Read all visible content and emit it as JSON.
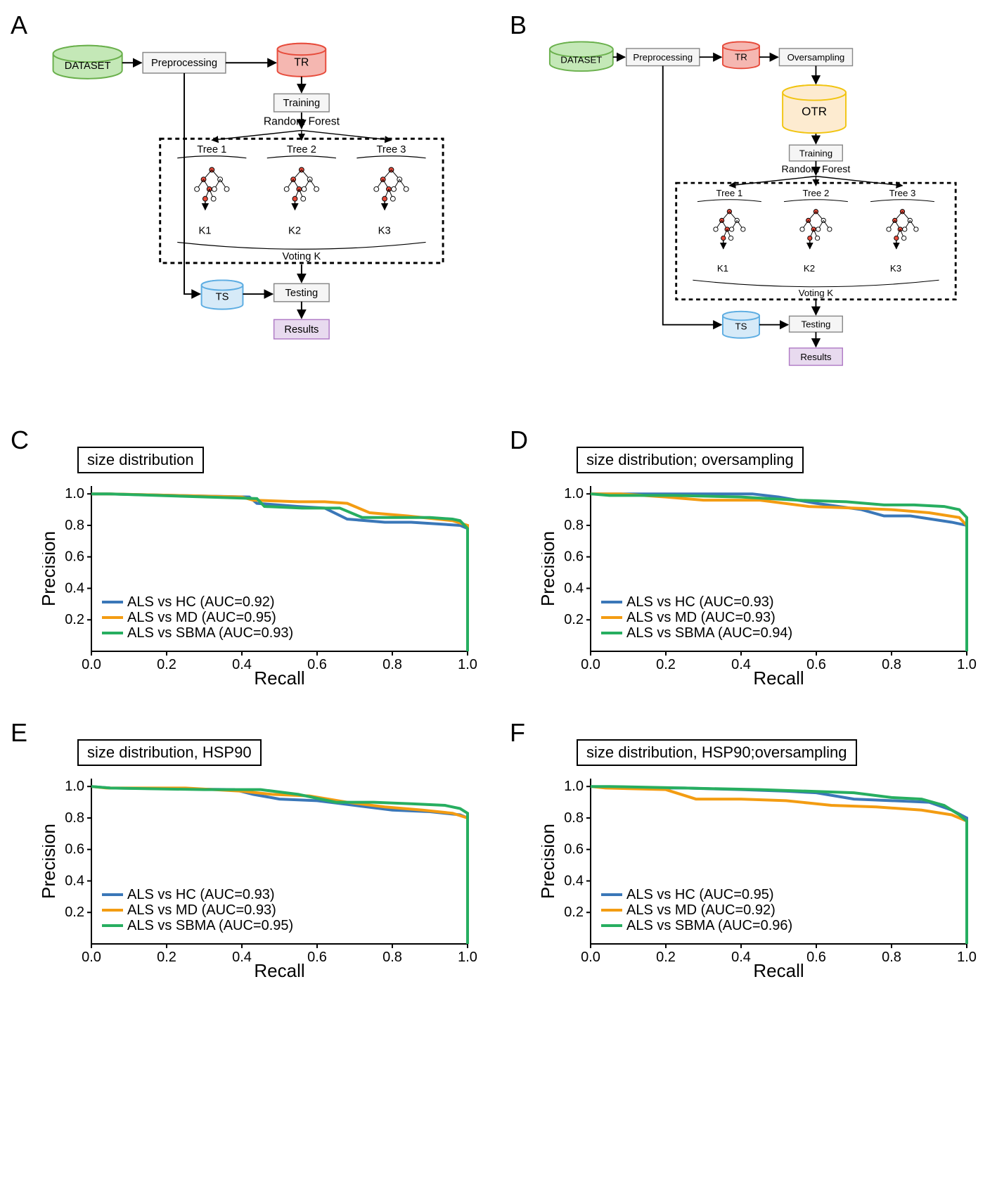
{
  "panels": {
    "A": {
      "label": "A",
      "boxes": {
        "dataset": "DATASET",
        "preprocessing": "Preprocessing",
        "tr": "TR",
        "training": "Training",
        "rf_title": "Random Forest",
        "tree1": "Tree 1",
        "tree2": "Tree 2",
        "tree3": "Tree 3",
        "k1": "K1",
        "k2": "K2",
        "k3": "K3",
        "voting": "Voting K",
        "ts": "TS",
        "testing": "Testing",
        "results": "Results"
      },
      "colors": {
        "dataset_fill": "#c4e8b7",
        "dataset_stroke": "#6ab04c",
        "tr_fill": "#f5b7b1",
        "tr_stroke": "#e74c3c",
        "ts_fill": "#d6eaf8",
        "ts_stroke": "#5dade2",
        "results_fill": "#e8daef",
        "results_stroke": "#af7ac5",
        "box_fill": "#f5f5f5",
        "box_stroke": "#888888",
        "node_fill_red": "#e74c3c",
        "node_fill_white": "#ffffff"
      }
    },
    "B": {
      "label": "B",
      "boxes": {
        "dataset": "DATASET",
        "preprocessing": "Preprocessing",
        "tr": "TR",
        "oversampling": "Oversampling",
        "otr": "OTR",
        "training": "Training",
        "rf_title": "Random Forest",
        "tree1": "Tree 1",
        "tree2": "Tree 2",
        "tree3": "Tree 3",
        "k1": "K1",
        "k2": "K2",
        "k3": "K3",
        "voting": "Voting K",
        "ts": "TS",
        "testing": "Testing",
        "results": "Results"
      },
      "colors": {
        "otr_fill": "#fdebd0",
        "otr_stroke": "#f1c40f"
      }
    },
    "C": {
      "label": "C",
      "title": "size distribution",
      "xlabel": "Recall",
      "ylabel": "Precision",
      "xlim": [
        0,
        1
      ],
      "ylim": [
        0,
        1.05
      ],
      "xticks": [
        0.0,
        0.2,
        0.4,
        0.6,
        0.8,
        1.0
      ],
      "yticks": [
        0.2,
        0.4,
        0.6,
        0.8,
        1.0
      ],
      "series": [
        {
          "name": "ALS vs HC (AUC=0.92)",
          "color": "#3a77b8",
          "data": [
            [
              0,
              1
            ],
            [
              0.04,
              1
            ],
            [
              0.42,
              0.98
            ],
            [
              0.44,
              0.94
            ],
            [
              0.55,
              0.92
            ],
            [
              0.62,
              0.91
            ],
            [
              0.68,
              0.84
            ],
            [
              0.78,
              0.82
            ],
            [
              0.85,
              0.82
            ],
            [
              0.98,
              0.8
            ],
            [
              1.0,
              0.78
            ],
            [
              1.0,
              0
            ]
          ]
        },
        {
          "name": "ALS vs MD (AUC=0.95)",
          "color": "#f39c12",
          "data": [
            [
              0,
              1
            ],
            [
              0.05,
              1
            ],
            [
              0.4,
              0.98
            ],
            [
              0.43,
              0.96
            ],
            [
              0.55,
              0.95
            ],
            [
              0.62,
              0.95
            ],
            [
              0.68,
              0.94
            ],
            [
              0.74,
              0.88
            ],
            [
              0.84,
              0.86
            ],
            [
              0.96,
              0.83
            ],
            [
              1.0,
              0.8
            ],
            [
              1.0,
              0
            ]
          ]
        },
        {
          "name": "ALS vs SBMA (AUC=0.93)",
          "color": "#27ae60",
          "data": [
            [
              0,
              1
            ],
            [
              0.05,
              1
            ],
            [
              0.44,
              0.97
            ],
            [
              0.46,
              0.92
            ],
            [
              0.56,
              0.91
            ],
            [
              0.66,
              0.91
            ],
            [
              0.72,
              0.85
            ],
            [
              0.82,
              0.85
            ],
            [
              0.9,
              0.85
            ],
            [
              0.96,
              0.84
            ],
            [
              0.98,
              0.83
            ],
            [
              1.0,
              0.78
            ],
            [
              1.0,
              0
            ]
          ]
        }
      ]
    },
    "D": {
      "label": "D",
      "title": "size distribution; oversampling",
      "xlabel": "Recall",
      "ylabel": "Precision",
      "xlim": [
        0,
        1
      ],
      "ylim": [
        0,
        1.05
      ],
      "xticks": [
        0.0,
        0.2,
        0.4,
        0.6,
        0.8,
        1.0
      ],
      "yticks": [
        0.2,
        0.4,
        0.6,
        0.8,
        1.0
      ],
      "series": [
        {
          "name": "ALS vs HC (AUC=0.93)",
          "color": "#3a77b8",
          "data": [
            [
              0,
              1
            ],
            [
              0.1,
              1
            ],
            [
              0.3,
              1
            ],
            [
              0.43,
              1
            ],
            [
              0.5,
              0.98
            ],
            [
              0.6,
              0.94
            ],
            [
              0.72,
              0.9
            ],
            [
              0.78,
              0.86
            ],
            [
              0.85,
              0.86
            ],
            [
              0.96,
              0.82
            ],
            [
              1.0,
              0.8
            ],
            [
              1.0,
              0
            ]
          ]
        },
        {
          "name": "ALS vs MD (AUC=0.93)",
          "color": "#f39c12",
          "data": [
            [
              0,
              1
            ],
            [
              0.08,
              1
            ],
            [
              0.2,
              0.98
            ],
            [
              0.3,
              0.96
            ],
            [
              0.45,
              0.96
            ],
            [
              0.58,
              0.92
            ],
            [
              0.7,
              0.91
            ],
            [
              0.8,
              0.9
            ],
            [
              0.9,
              0.88
            ],
            [
              0.98,
              0.85
            ],
            [
              1.0,
              0.8
            ],
            [
              1.0,
              0
            ]
          ]
        },
        {
          "name": "ALS vs SBMA (AUC=0.94)",
          "color": "#27ae60",
          "data": [
            [
              0,
              1
            ],
            [
              0.05,
              0.99
            ],
            [
              0.22,
              0.99
            ],
            [
              0.4,
              0.98
            ],
            [
              0.55,
              0.96
            ],
            [
              0.68,
              0.95
            ],
            [
              0.78,
              0.93
            ],
            [
              0.86,
              0.93
            ],
            [
              0.94,
              0.92
            ],
            [
              0.98,
              0.9
            ],
            [
              1.0,
              0.85
            ],
            [
              1.0,
              0
            ]
          ]
        }
      ]
    },
    "E": {
      "label": "E",
      "title": "size distribution, HSP90",
      "xlabel": "Recall",
      "ylabel": "Precision",
      "xlim": [
        0,
        1
      ],
      "ylim": [
        0,
        1.05
      ],
      "xticks": [
        0.0,
        0.2,
        0.4,
        0.6,
        0.8,
        1.0
      ],
      "yticks": [
        0.2,
        0.4,
        0.6,
        0.8,
        1.0
      ],
      "series": [
        {
          "name": "ALS vs HC (AUC=0.93)",
          "color": "#3a77b8",
          "data": [
            [
              0,
              1
            ],
            [
              0.05,
              0.99
            ],
            [
              0.38,
              0.98
            ],
            [
              0.43,
              0.95
            ],
            [
              0.5,
              0.92
            ],
            [
              0.6,
              0.91
            ],
            [
              0.7,
              0.88
            ],
            [
              0.8,
              0.85
            ],
            [
              0.9,
              0.84
            ],
            [
              0.98,
              0.82
            ],
            [
              1.0,
              0.8
            ],
            [
              1.0,
              0
            ]
          ]
        },
        {
          "name": "ALS vs MD (AUC=0.93)",
          "color": "#f39c12",
          "data": [
            [
              0,
              1
            ],
            [
              0.04,
              0.99
            ],
            [
              0.25,
              0.99
            ],
            [
              0.4,
              0.97
            ],
            [
              0.48,
              0.95
            ],
            [
              0.58,
              0.94
            ],
            [
              0.68,
              0.9
            ],
            [
              0.78,
              0.87
            ],
            [
              0.88,
              0.85
            ],
            [
              0.96,
              0.83
            ],
            [
              1.0,
              0.8
            ],
            [
              1.0,
              0
            ]
          ]
        },
        {
          "name": "ALS vs SBMA (AUC=0.95)",
          "color": "#27ae60",
          "data": [
            [
              0,
              1
            ],
            [
              0.05,
              0.99
            ],
            [
              0.3,
              0.98
            ],
            [
              0.45,
              0.98
            ],
            [
              0.55,
              0.95
            ],
            [
              0.65,
              0.9
            ],
            [
              0.75,
              0.9
            ],
            [
              0.85,
              0.89
            ],
            [
              0.94,
              0.88
            ],
            [
              0.98,
              0.86
            ],
            [
              1.0,
              0.83
            ],
            [
              1.0,
              0
            ]
          ]
        }
      ]
    },
    "F": {
      "label": "F",
      "title": "size distribution, HSP90;oversampling",
      "xlabel": "Recall",
      "ylabel": "Precision",
      "xlim": [
        0,
        1
      ],
      "ylim": [
        0,
        1.05
      ],
      "xticks": [
        0.0,
        0.2,
        0.4,
        0.6,
        0.8,
        1.0
      ],
      "yticks": [
        0.2,
        0.4,
        0.6,
        0.8,
        1.0
      ],
      "series": [
        {
          "name": "ALS vs HC (AUC=0.95)",
          "color": "#3a77b8",
          "data": [
            [
              0,
              1
            ],
            [
              0.06,
              0.99
            ],
            [
              0.25,
              0.99
            ],
            [
              0.4,
              0.98
            ],
            [
              0.52,
              0.97
            ],
            [
              0.6,
              0.96
            ],
            [
              0.7,
              0.92
            ],
            [
              0.8,
              0.91
            ],
            [
              0.9,
              0.9
            ],
            [
              0.96,
              0.85
            ],
            [
              1.0,
              0.8
            ],
            [
              1.0,
              0
            ]
          ]
        },
        {
          "name": "ALS vs MD (AUC=0.92)",
          "color": "#f39c12",
          "data": [
            [
              0,
              1
            ],
            [
              0.04,
              0.99
            ],
            [
              0.2,
              0.98
            ],
            [
              0.28,
              0.92
            ],
            [
              0.4,
              0.92
            ],
            [
              0.52,
              0.91
            ],
            [
              0.64,
              0.88
            ],
            [
              0.76,
              0.87
            ],
            [
              0.88,
              0.85
            ],
            [
              0.96,
              0.82
            ],
            [
              1.0,
              0.78
            ],
            [
              1.0,
              0
            ]
          ]
        },
        {
          "name": "ALS vs SBMA (AUC=0.96)",
          "color": "#27ae60",
          "data": [
            [
              0,
              1
            ],
            [
              0.05,
              1
            ],
            [
              0.25,
              0.99
            ],
            [
              0.45,
              0.98
            ],
            [
              0.58,
              0.97
            ],
            [
              0.7,
              0.96
            ],
            [
              0.8,
              0.93
            ],
            [
              0.88,
              0.92
            ],
            [
              0.94,
              0.88
            ],
            [
              0.98,
              0.82
            ],
            [
              1.0,
              0.78
            ],
            [
              1.0,
              0
            ]
          ]
        }
      ]
    }
  },
  "chart_style": {
    "line_width": 4,
    "axis_color": "#000000",
    "axis_width": 2,
    "label_fontsize": 26,
    "tick_fontsize": 20,
    "legend_fontsize": 20
  }
}
